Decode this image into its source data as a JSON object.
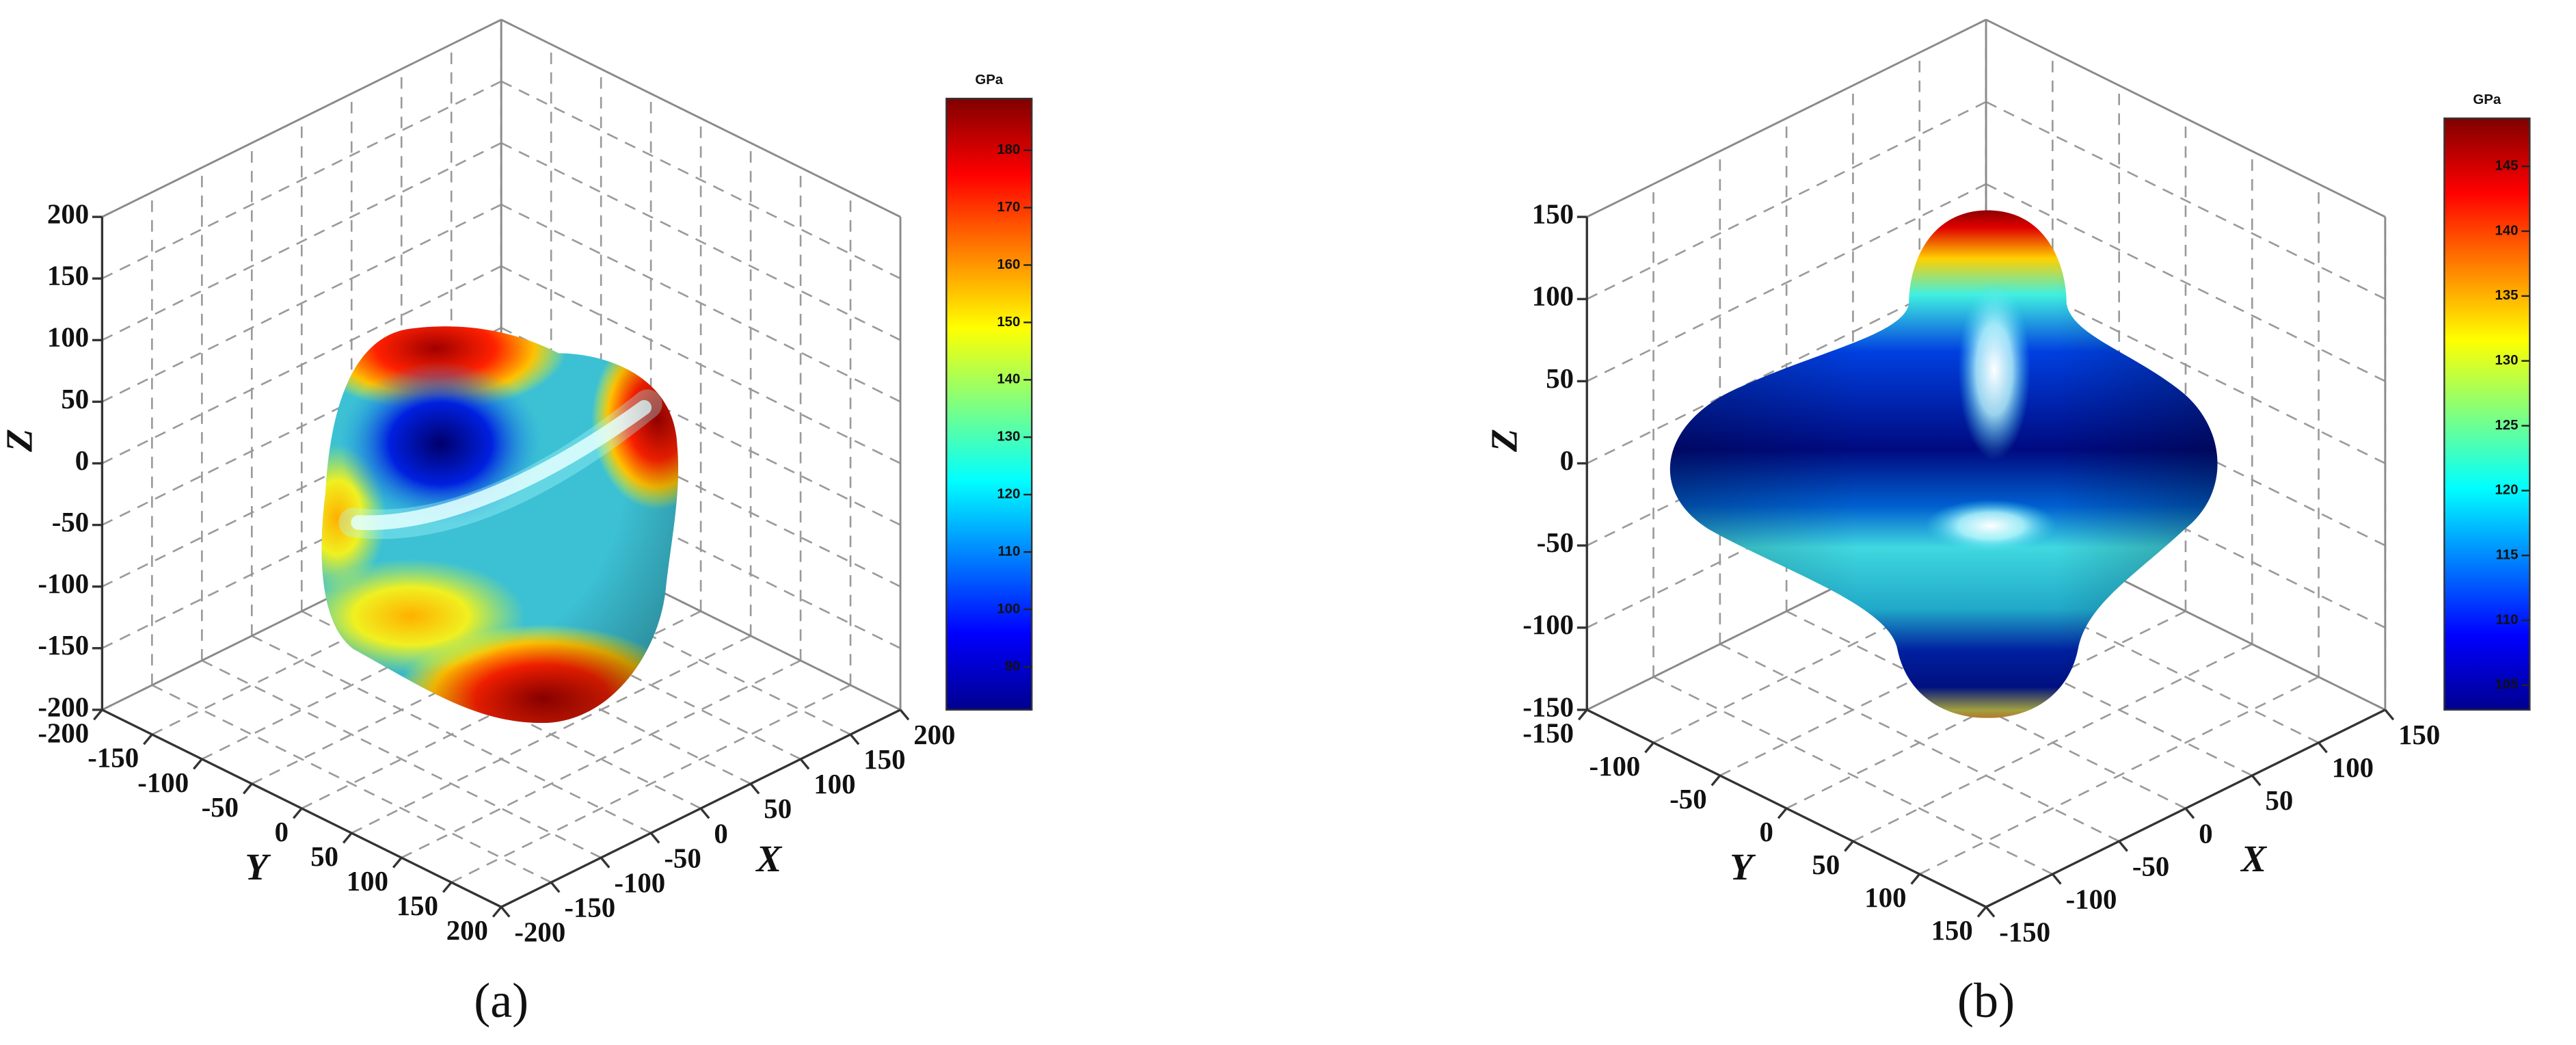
{
  "chart_data": [
    {
      "type": "surface3d",
      "panel_label": "(a)",
      "xlabel": "X",
      "ylabel": "Y",
      "zlabel": "Z",
      "xlim": [
        -200,
        200
      ],
      "ylim": [
        -200,
        200
      ],
      "zlim": [
        -200,
        200
      ],
      "xticks": [
        -200,
        -150,
        -100,
        -50,
        0,
        50,
        100,
        150,
        200
      ],
      "yticks": [
        -200,
        -150,
        -100,
        -50,
        0,
        50,
        100,
        150,
        200
      ],
      "zticks": [
        -200,
        -150,
        -100,
        -50,
        0,
        50,
        100,
        150,
        200
      ],
      "grid": true,
      "colorbar": {
        "label": "GPa",
        "lim": [
          82.5,
          189
        ],
        "ticks": [
          90,
          100,
          110,
          120,
          130,
          140,
          150,
          160,
          170,
          180
        ],
        "colormap": "jet"
      }
    },
    {
      "type": "surface3d",
      "panel_label": "(b)",
      "xlabel": "X",
      "ylabel": "Y",
      "zlabel": "Z",
      "xlim": [
        -150,
        150
      ],
      "ylim": [
        -150,
        150
      ],
      "zlim": [
        -150,
        150
      ],
      "xticks": [
        -150,
        -100,
        -50,
        0,
        50,
        100,
        150
      ],
      "yticks": [
        -150,
        -100,
        -50,
        0,
        50,
        100,
        150
      ],
      "zticks": [
        -150,
        -100,
        -50,
        0,
        50,
        100,
        150
      ],
      "grid": true,
      "colorbar": {
        "label": "GPa",
        "lim": [
          103.1,
          148.7
        ],
        "ticks": [
          105,
          110,
          115,
          120,
          125,
          130,
          135,
          140,
          145
        ],
        "colormap": "jet"
      }
    }
  ]
}
